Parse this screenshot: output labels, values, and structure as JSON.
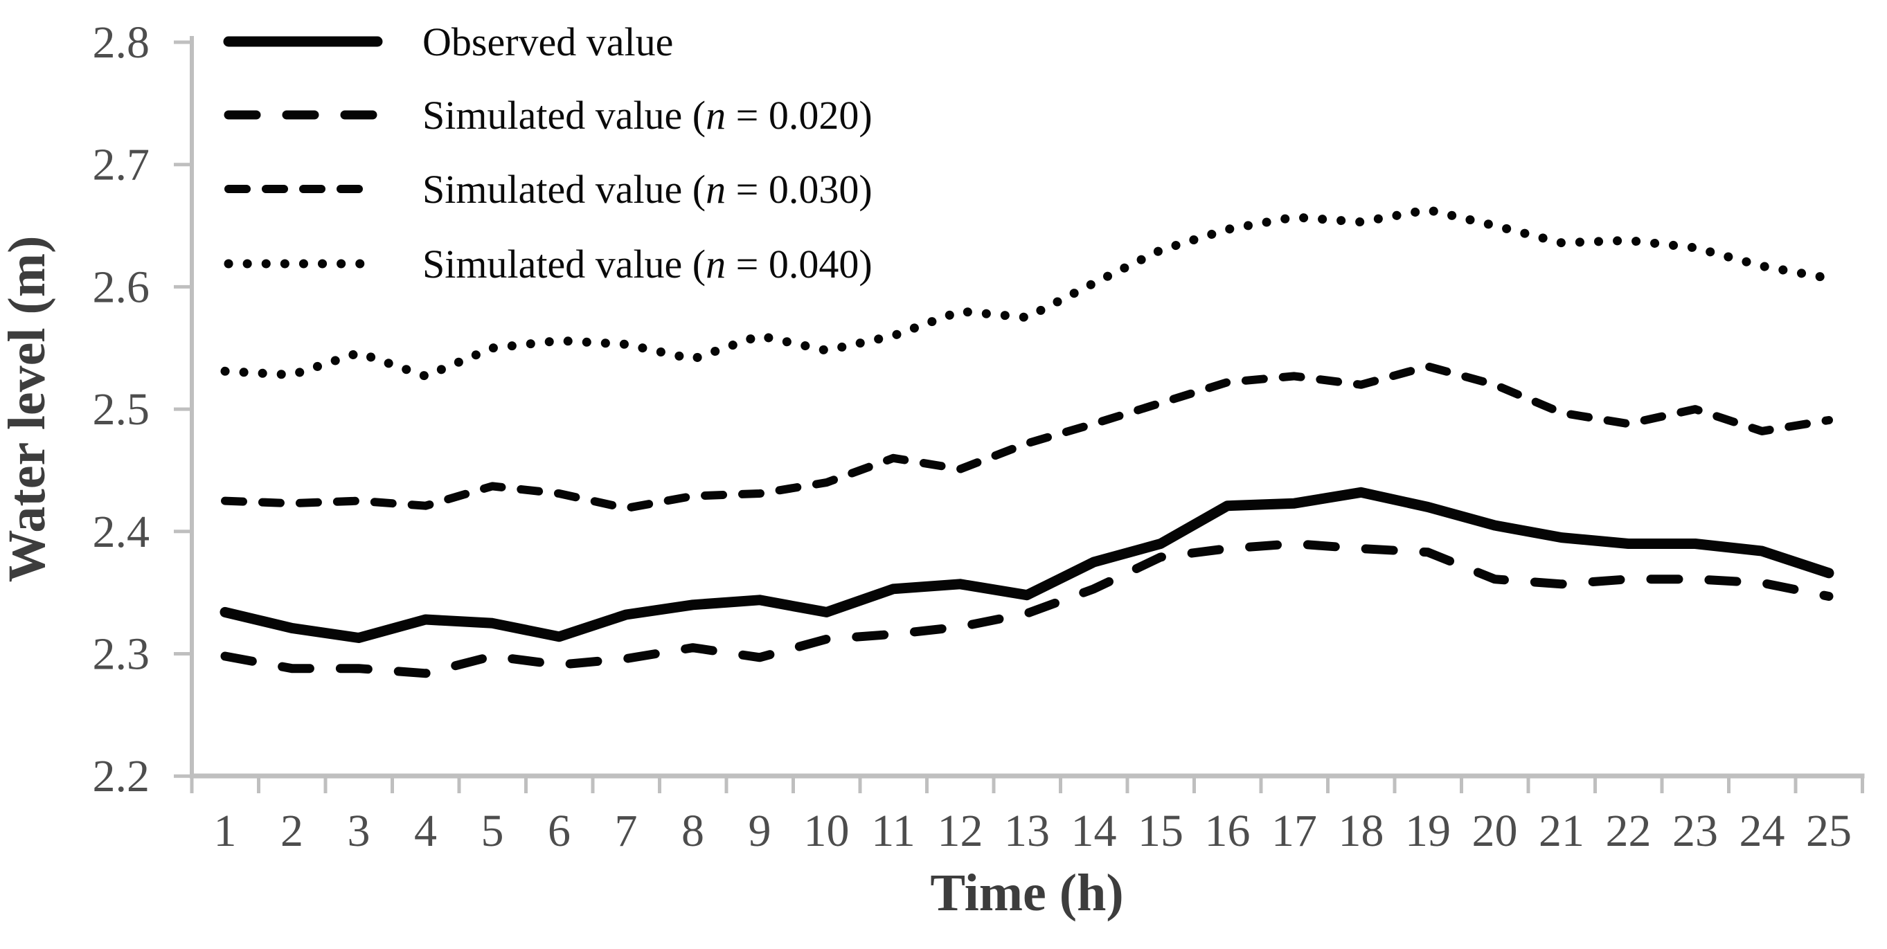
{
  "figure": {
    "background": "#ffffff"
  },
  "chart_data": {
    "type": "line",
    "title": "",
    "xlabel": "Time (h)",
    "ylabel": "Water level (m)",
    "x": [
      1,
      2,
      3,
      4,
      5,
      6,
      7,
      8,
      9,
      10,
      11,
      12,
      13,
      14,
      15,
      16,
      17,
      18,
      19,
      20,
      21,
      22,
      23,
      24,
      25
    ],
    "xlim": [
      0.5,
      25.5
    ],
    "ylim": [
      2.2,
      2.8
    ],
    "yticks": [
      2.8,
      2.7,
      2.6,
      2.5,
      2.4,
      2.3,
      2.2
    ],
    "ytick_labels": [
      "2.8",
      "2.7",
      "2.6",
      "2.5",
      "2.4",
      "2.3",
      "2.2"
    ],
    "grid": false,
    "legend_position": "top-left",
    "series": [
      {
        "name": "Observed value",
        "line_style": "solid-thick",
        "values": [
          2.334,
          2.321,
          2.313,
          2.328,
          2.325,
          2.314,
          2.332,
          2.34,
          2.344,
          2.334,
          2.353,
          2.357,
          2.348,
          2.375,
          2.39,
          2.421,
          2.423,
          2.432,
          2.42,
          2.405,
          2.395,
          2.39,
          2.39,
          2.384,
          2.366
        ]
      },
      {
        "name": "Simulated value (n = 0.020)",
        "line_style": "dash-long",
        "values": [
          2.298,
          2.288,
          2.288,
          2.284,
          2.298,
          2.291,
          2.296,
          2.305,
          2.297,
          2.312,
          2.316,
          2.322,
          2.333,
          2.353,
          2.379,
          2.386,
          2.39,
          2.386,
          2.383,
          2.361,
          2.357,
          2.361,
          2.361,
          2.358,
          2.347
        ]
      },
      {
        "name": "Simulated value (n = 0.030)",
        "line_style": "dash-medium",
        "values": [
          2.425,
          2.423,
          2.425,
          2.421,
          2.437,
          2.431,
          2.419,
          2.429,
          2.431,
          2.44,
          2.46,
          2.451,
          2.472,
          2.488,
          2.505,
          2.522,
          2.527,
          2.52,
          2.535,
          2.52,
          2.497,
          2.488,
          2.5,
          2.482,
          2.491
        ]
      },
      {
        "name": "Simulated value (n = 0.040)",
        "line_style": "dotted",
        "values": [
          2.531,
          2.528,
          2.546,
          2.527,
          2.55,
          2.556,
          2.553,
          2.541,
          2.56,
          2.548,
          2.56,
          2.58,
          2.575,
          2.603,
          2.63,
          2.647,
          2.657,
          2.653,
          2.663,
          2.65,
          2.636,
          2.638,
          2.632,
          2.617,
          2.607
        ]
      }
    ],
    "colors": {
      "series": "#050505",
      "axis": "#bfbfbf",
      "tick_label": "#4d4d4d",
      "axis_title": "#3d3d3d",
      "legend_text": "#0a0a0a"
    }
  }
}
